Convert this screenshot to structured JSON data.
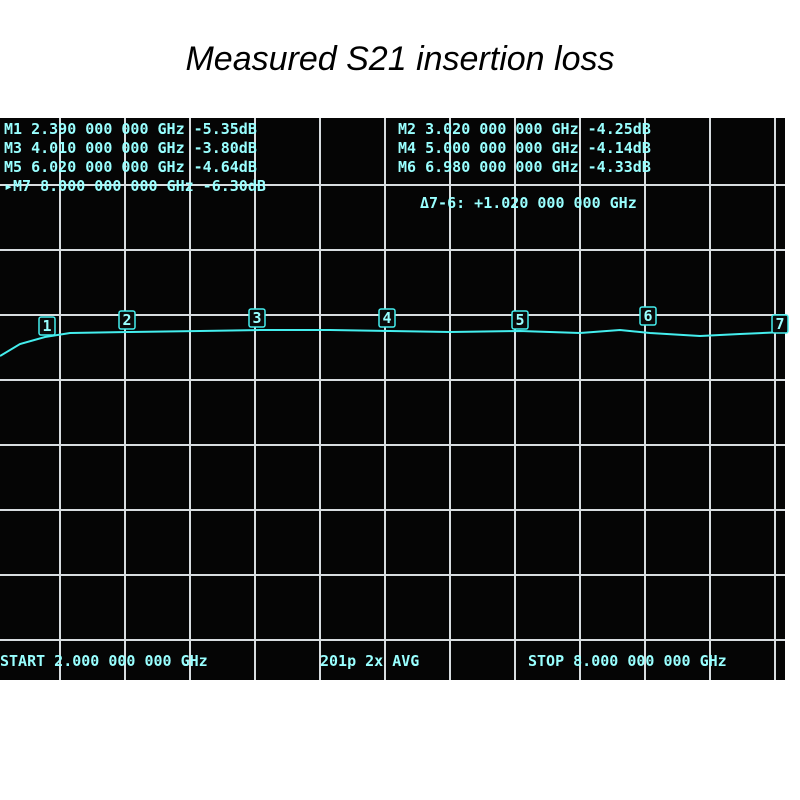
{
  "title": "Measured S21 insertion loss",
  "readouts": {
    "left": [
      "M1 2.390 000 000 GHz -5.35dB",
      "M3 4.010 000 000 GHz -3.80dB",
      "M5 6.020 000 000 GHz -4.64dB",
      "▸M7 8.000 000 000 GHz -6.30dB"
    ],
    "right": [
      "M2 3.020 000 000 GHz -4.25dB",
      "M4 5.000 000 000 GHz -4.14dB",
      "M6 6.980 000 000 GHz -4.33dB"
    ]
  },
  "delta": "Δ7-6: +1.020 000 000 GHz",
  "markers": [
    "1",
    "2",
    "3",
    "4",
    "5",
    "6",
    "7"
  ],
  "footer": {
    "start": "START 2.000 000 000 GHz",
    "points": "201p  2x AVG",
    "stop": "STOP 8.000 000 000 GHz"
  }
}
